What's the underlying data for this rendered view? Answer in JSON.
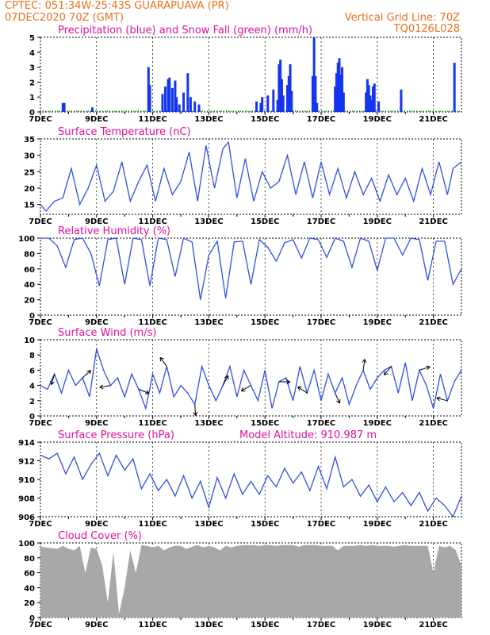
{
  "header": {
    "line1_left": "CPTEC:   051:34W-25:43S   GUARAPUAVA (PR)",
    "line2_left": "07DEC2020 70Z (GMT)",
    "line2_right": "Vertical Grid Line: 70Z",
    "line3_right": "TQ0126L028"
  },
  "colors": {
    "orange_text": "#e8701e",
    "magenta_text": "#e0109a",
    "line_blue": "#3050e0",
    "bar_blue": "#1535f0",
    "snow_green": "#10a010",
    "cloud_gray": "#a8a8a8"
  },
  "chart_data": [
    {
      "id": "precip",
      "type": "bar",
      "title": "Precipitation (blue) and Snow Fall (green) (mm/h)",
      "ylim": [
        0,
        5
      ],
      "yticks": [
        0,
        1,
        2,
        3,
        4,
        5
      ],
      "xticks": [
        "7DEC",
        "9DEC",
        "11DEC",
        "13DEC",
        "15DEC",
        "17DEC",
        "19DEC",
        "21DEC"
      ],
      "bars": [
        [
          7.8,
          0.6
        ],
        [
          7.85,
          0.6
        ],
        [
          8.85,
          0.3
        ],
        [
          10.85,
          3.0
        ],
        [
          10.9,
          1.8
        ],
        [
          11.35,
          1.2
        ],
        [
          11.45,
          1.7
        ],
        [
          11.55,
          2.2
        ],
        [
          11.6,
          2.3
        ],
        [
          11.7,
          1.6
        ],
        [
          11.8,
          2.1
        ],
        [
          11.85,
          1.0
        ],
        [
          11.95,
          0.5
        ],
        [
          12.1,
          1.3
        ],
        [
          12.25,
          2.6
        ],
        [
          12.35,
          1.0
        ],
        [
          12.5,
          0.7
        ],
        [
          12.65,
          0.5
        ],
        [
          14.7,
          0.7
        ],
        [
          14.85,
          0.6
        ],
        [
          14.9,
          1.0
        ],
        [
          15.1,
          1.1
        ],
        [
          15.3,
          1.5
        ],
        [
          15.45,
          0.8
        ],
        [
          15.5,
          3.2
        ],
        [
          15.55,
          3.5
        ],
        [
          15.6,
          2.2
        ],
        [
          15.65,
          1.1
        ],
        [
          15.8,
          1.8
        ],
        [
          15.85,
          2.4
        ],
        [
          15.9,
          3.2
        ],
        [
          15.95,
          1.4
        ],
        [
          16.7,
          2.4
        ],
        [
          16.75,
          5.0
        ],
        [
          16.8,
          2.4
        ],
        [
          16.85,
          0.6
        ],
        [
          17.5,
          1.7
        ],
        [
          17.55,
          2.6
        ],
        [
          17.6,
          3.3
        ],
        [
          17.65,
          3.6
        ],
        [
          17.7,
          2.5
        ],
        [
          17.75,
          3.0
        ],
        [
          17.8,
          1.3
        ],
        [
          18.6,
          1.3
        ],
        [
          18.65,
          2.2
        ],
        [
          18.7,
          1.8
        ],
        [
          18.75,
          1.1
        ],
        [
          18.8,
          0.8
        ],
        [
          18.85,
          1.7
        ],
        [
          18.9,
          1.9
        ],
        [
          19.05,
          0.7
        ],
        [
          19.85,
          1.5
        ],
        [
          21.75,
          3.3
        ]
      ]
    },
    {
      "id": "temp",
      "type": "line",
      "title": "Surface Temperature (nC)",
      "ylim": [
        12,
        35
      ],
      "yticks": [
        15,
        20,
        25,
        30,
        35
      ],
      "xticks": [
        "7DEC",
        "9DEC",
        "11DEC",
        "13DEC",
        "15DEC",
        "17DEC",
        "19DEC",
        "21DEC"
      ],
      "x": [
        7.0,
        7.2,
        7.5,
        7.8,
        8.1,
        8.4,
        8.7,
        9.0,
        9.3,
        9.6,
        9.9,
        10.2,
        10.5,
        10.8,
        11.1,
        11.4,
        11.7,
        12.0,
        12.3,
        12.6,
        12.9,
        13.2,
        13.5,
        13.7,
        14.0,
        14.3,
        14.6,
        14.9,
        15.2,
        15.5,
        15.8,
        16.1,
        16.4,
        16.7,
        17.0,
        17.3,
        17.6,
        17.9,
        18.2,
        18.5,
        18.8,
        19.1,
        19.4,
        19.7,
        20.0,
        20.3,
        20.6,
        20.9,
        21.2,
        21.5,
        21.7,
        22.0
      ],
      "y": [
        15,
        13,
        16,
        17,
        26,
        15,
        20,
        27,
        16,
        19,
        28,
        16,
        22,
        27,
        16,
        26,
        18,
        22,
        31,
        16,
        33,
        20,
        32,
        34,
        17,
        29,
        16,
        25,
        20,
        22,
        30,
        18,
        28,
        17,
        28,
        18,
        26,
        17,
        25,
        18,
        23,
        16,
        24,
        18,
        23,
        16,
        26,
        18,
        28,
        18,
        26,
        28
      ]
    },
    {
      "id": "rh",
      "type": "line",
      "title": "Relative Humidity (%)",
      "ylim": [
        0,
        100
      ],
      "yticks": [
        0,
        20,
        40,
        60,
        80,
        100
      ],
      "xticks": [
        "7DEC",
        "9DEC",
        "11DEC",
        "13DEC",
        "15DEC",
        "17DEC",
        "19DEC",
        "21DEC"
      ],
      "x": [
        7.0,
        7.3,
        7.6,
        7.9,
        8.2,
        8.5,
        8.8,
        9.1,
        9.4,
        9.7,
        10.0,
        10.3,
        10.6,
        10.9,
        11.2,
        11.5,
        11.8,
        12.1,
        12.4,
        12.7,
        13.0,
        13.3,
        13.6,
        13.9,
        14.2,
        14.5,
        14.8,
        15.1,
        15.4,
        15.7,
        16.0,
        16.3,
        16.6,
        16.9,
        17.2,
        17.5,
        17.8,
        18.1,
        18.4,
        18.7,
        19.0,
        19.3,
        19.6,
        19.9,
        20.2,
        20.5,
        20.8,
        21.1,
        21.4,
        21.7,
        22.0
      ],
      "y": [
        100,
        100,
        90,
        62,
        98,
        100,
        80,
        38,
        98,
        100,
        40,
        100,
        98,
        38,
        100,
        98,
        50,
        100,
        95,
        20,
        78,
        96,
        22,
        95,
        96,
        40,
        98,
        88,
        70,
        94,
        98,
        74,
        100,
        98,
        75,
        100,
        96,
        62,
        100,
        96,
        58,
        100,
        100,
        78,
        100,
        98,
        45,
        96,
        96,
        40,
        60
      ]
    },
    {
      "id": "wind",
      "type": "line",
      "title": "Surface Wind (m/s)",
      "ylim": [
        0,
        10
      ],
      "yticks": [
        0,
        2,
        4,
        6,
        8,
        10
      ],
      "xticks": [
        "7DEC",
        "9DEC",
        "11DEC",
        "13DEC",
        "15DEC",
        "17DEC",
        "19DEC",
        "21DEC"
      ],
      "x": [
        7.0,
        7.25,
        7.5,
        7.75,
        8.0,
        8.25,
        8.5,
        8.75,
        9.0,
        9.25,
        9.5,
        9.75,
        10.0,
        10.25,
        10.5,
        10.75,
        11.0,
        11.25,
        11.5,
        11.75,
        12.0,
        12.25,
        12.5,
        12.75,
        13.0,
        13.25,
        13.5,
        13.75,
        14.0,
        14.25,
        14.5,
        14.75,
        15.0,
        15.25,
        15.5,
        15.75,
        16.0,
        16.25,
        16.5,
        16.75,
        17.0,
        17.25,
        17.5,
        17.75,
        18.0,
        18.25,
        18.5,
        18.75,
        19.0,
        19.25,
        19.5,
        19.75,
        20.0,
        20.25,
        20.5,
        20.75,
        21.0,
        21.25,
        21.5,
        21.75,
        22.0
      ],
      "y": [
        4,
        3.5,
        5.5,
        3,
        6,
        4,
        5,
        2.5,
        8.8,
        6,
        4,
        5,
        2.5,
        5.5,
        3.5,
        1,
        5.5,
        3,
        6.5,
        2.5,
        4,
        3,
        1.5,
        6.5,
        4,
        2,
        4,
        6.5,
        2.5,
        6,
        4,
        2,
        6,
        1,
        4.5,
        5,
        2,
        6.5,
        3,
        6,
        2,
        5.5,
        3,
        5,
        1.5,
        4,
        6,
        3.5,
        5,
        6,
        6.5,
        3,
        7,
        2,
        6,
        4,
        1,
        5.5,
        2,
        4.5,
        6
      ]
    },
    {
      "id": "pres",
      "type": "line",
      "title": "Surface Pressure (hPa)",
      "subtitle": "Model Altitude: 910.987 m",
      "ylim": [
        906,
        914
      ],
      "yticks": [
        906,
        908,
        910,
        912,
        914
      ],
      "xticks": [
        "7DEC",
        "9DEC",
        "11DEC",
        "13DEC",
        "15DEC",
        "17DEC",
        "19DEC",
        "21DEC"
      ],
      "x": [
        7.0,
        7.3,
        7.6,
        7.9,
        8.2,
        8.5,
        8.8,
        9.1,
        9.4,
        9.7,
        10.0,
        10.3,
        10.6,
        10.9,
        11.2,
        11.5,
        11.8,
        12.1,
        12.4,
        12.7,
        13.0,
        13.3,
        13.6,
        13.9,
        14.2,
        14.5,
        14.8,
        15.1,
        15.4,
        15.7,
        16.0,
        16.3,
        16.6,
        16.9,
        17.2,
        17.5,
        17.8,
        18.1,
        18.4,
        18.7,
        19.0,
        19.3,
        19.6,
        19.9,
        20.2,
        20.5,
        20.8,
        21.1,
        21.4,
        21.7,
        22.0
      ],
      "y": [
        912.6,
        912.2,
        912.8,
        910.6,
        912.4,
        910.0,
        911.6,
        912.8,
        910.4,
        912.6,
        911.0,
        912.2,
        909.0,
        910.6,
        908.8,
        910.0,
        908.2,
        910.4,
        908.0,
        909.8,
        907.0,
        910.2,
        908.0,
        910.6,
        908.4,
        909.8,
        908.4,
        910.4,
        909.2,
        911.2,
        909.6,
        910.8,
        908.8,
        911.4,
        909.0,
        912.4,
        909.2,
        910.0,
        908.2,
        909.4,
        907.6,
        909.2,
        907.6,
        908.6,
        907.2,
        908.6,
        906.6,
        908.0,
        907.2,
        906.0,
        908.2
      ]
    },
    {
      "id": "cloud",
      "type": "area",
      "title": "Cloud Cover (%)",
      "ylim": [
        0,
        100
      ],
      "yticks": [
        0,
        20,
        40,
        60,
        80,
        100
      ],
      "xticks": [
        "7DEC",
        "9DEC",
        "11DEC",
        "13DEC",
        "15DEC",
        "17DEC",
        "19DEC",
        "21DEC"
      ],
      "x": [
        7.0,
        7.2,
        7.4,
        7.6,
        7.8,
        8.0,
        8.2,
        8.4,
        8.6,
        8.8,
        9.0,
        9.2,
        9.4,
        9.6,
        9.8,
        10.0,
        10.2,
        10.4,
        10.6,
        10.8,
        11.0,
        11.2,
        11.4,
        11.6,
        11.8,
        12.0,
        12.2,
        12.4,
        12.6,
        12.8,
        13.0,
        13.2,
        13.4,
        13.6,
        13.8,
        14.0,
        14.2,
        14.4,
        14.6,
        14.8,
        15.0,
        15.2,
        15.4,
        15.6,
        15.8,
        16.0,
        16.2,
        16.4,
        16.6,
        16.8,
        17.0,
        17.2,
        17.4,
        17.6,
        17.8,
        18.0,
        18.2,
        18.4,
        18.6,
        18.8,
        19.0,
        19.2,
        19.4,
        19.6,
        19.8,
        20.0,
        20.2,
        20.4,
        20.6,
        20.8,
        21.0,
        21.2,
        21.4,
        21.6,
        21.8,
        22.0
      ],
      "y": [
        95,
        94,
        93,
        92,
        96,
        92,
        90,
        96,
        60,
        94,
        92,
        70,
        20,
        88,
        5,
        40,
        90,
        60,
        97,
        96,
        94,
        96,
        90,
        94,
        96,
        96,
        92,
        95,
        97,
        94,
        96,
        94,
        90,
        96,
        94,
        96,
        97,
        97,
        97,
        96,
        97,
        97,
        96,
        97,
        97,
        97,
        95,
        97,
        97,
        97,
        96,
        96,
        96,
        90,
        96,
        96,
        96,
        97,
        96,
        97,
        96,
        96,
        96,
        95,
        96,
        97,
        96,
        96,
        96,
        96,
        60,
        96,
        94,
        96,
        90,
        70
      ]
    }
  ]
}
